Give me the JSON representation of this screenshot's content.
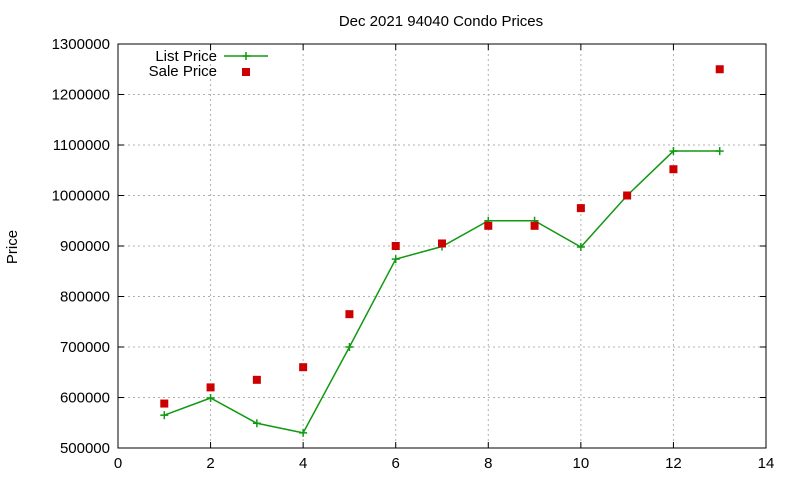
{
  "chart_data": {
    "type": "line",
    "title": "Dec 2021 94040 Condo Prices",
    "xlabel": "",
    "ylabel": "Price",
    "xlim": [
      0,
      14
    ],
    "ylim": [
      500000,
      1300000
    ],
    "xticks": [
      0,
      2,
      4,
      6,
      8,
      10,
      12,
      14
    ],
    "yticks": [
      500000,
      600000,
      700000,
      800000,
      900000,
      1000000,
      1100000,
      1200000,
      1300000
    ],
    "grid": true,
    "legend_position": "top-left",
    "series": [
      {
        "name": "List Price",
        "style": "line-with-plus-markers",
        "color": "#119911",
        "x": [
          1,
          2,
          3,
          4,
          5,
          6,
          7,
          8,
          9,
          10,
          11,
          12,
          13
        ],
        "y": [
          565000,
          599000,
          549000,
          530000,
          700000,
          874000,
          899000,
          950000,
          950000,
          898000,
          1000000,
          1088000,
          1088000
        ]
      },
      {
        "name": "Sale Price",
        "style": "square-markers",
        "color": "#cc0000",
        "x": [
          1,
          2,
          3,
          4,
          5,
          6,
          7,
          8,
          9,
          10,
          11,
          12,
          13
        ],
        "y": [
          588000,
          620000,
          635000,
          660000,
          765000,
          900000,
          905000,
          940000,
          940000,
          975000,
          1000000,
          1052000,
          1250000
        ]
      }
    ]
  }
}
